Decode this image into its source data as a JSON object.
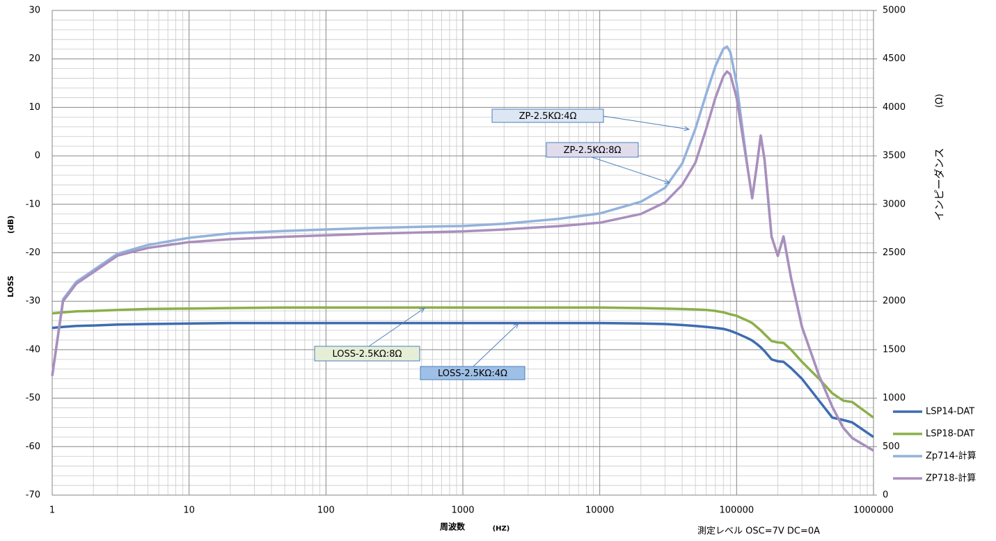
{
  "chart_data": {
    "type": "line",
    "x_label": "周波数",
    "x_unit": "(HZ)",
    "y_label": "LOSS",
    "y_unit": "(dB)",
    "y2_label": "インピーダンス",
    "y2_unit": "(Ω)",
    "footnote": "測定レベル  OSC=7V   DC=0A",
    "x_log": true,
    "grid": true,
    "legend": "right",
    "xlim": [
      1,
      1000000
    ],
    "xticks": [
      1,
      10,
      100,
      1000,
      10000,
      100000,
      1000000
    ],
    "ylim": [
      -70,
      30
    ],
    "yticks": [
      -70,
      -60,
      -50,
      -40,
      -30,
      -20,
      -10,
      0,
      10,
      20,
      30
    ],
    "y2lim": [
      0,
      5000
    ],
    "y2ticks": [
      0,
      500,
      1000,
      1500,
      2000,
      2500,
      3000,
      3500,
      4000,
      4500,
      5000
    ],
    "x": [
      1,
      1.2,
      1.5,
      2,
      3,
      5,
      10,
      20,
      50,
      100,
      200,
      500,
      1000,
      2000,
      5000,
      10000,
      20000,
      30000,
      40000,
      50000,
      60000,
      70000,
      80000,
      85000,
      90000,
      100000,
      120000,
      130000,
      140000,
      150000,
      160000,
      180000,
      200000,
      220000,
      250000,
      300000,
      400000,
      500000,
      600000,
      700000,
      1000000
    ],
    "series": [
      {
        "name": "LSP14-DAT",
        "color": "#3e6cb0",
        "values": [
          -35.5,
          -35.3,
          -35.1,
          -35,
          -34.8,
          -34.7,
          -34.6,
          -34.5,
          -34.5,
          -34.5,
          -34.5,
          -34.5,
          -34.5,
          -34.5,
          -34.5,
          -34.5,
          -34.6,
          -34.7,
          -34.9,
          -35.1,
          -35.3,
          -35.5,
          -35.7,
          -35.9,
          -36.1,
          -36.6,
          -37.6,
          -38.1,
          -38.8,
          -39.5,
          -40.3,
          -42,
          -42.4,
          -42.5,
          -43.8,
          -46,
          -50.5,
          -54,
          -54.5,
          -55,
          -58
        ]
      },
      {
        "name": "LSP18-DAT",
        "color": "#8caf4a",
        "values": [
          -32.5,
          -32.3,
          -32.1,
          -32,
          -31.8,
          -31.6,
          -31.5,
          -31.4,
          -31.3,
          -31.3,
          -31.3,
          -31.3,
          -31.3,
          -31.3,
          -31.3,
          -31.3,
          -31.4,
          -31.5,
          -31.6,
          -31.7,
          -31.8,
          -32,
          -32.3,
          -32.5,
          -32.7,
          -33,
          -34,
          -34.5,
          -35.3,
          -36,
          -36.8,
          -38.2,
          -38.5,
          -38.6,
          -40,
          -42.5,
          -46,
          -49,
          -50.5,
          -50.8,
          -54
        ]
      },
      {
        "name": "Zp714-計算",
        "color": "#93b2dc",
        "axis": "y2",
        "values": [
          1230,
          2020,
          2200,
          2320,
          2490,
          2580,
          2654,
          2700,
          2725,
          2740,
          2755,
          2768,
          2776,
          2800,
          2850,
          2905,
          3027,
          3170,
          3420,
          3780,
          4140,
          4426,
          4605,
          4627,
          4570,
          4247,
          3386,
          3063,
          3386,
          3709,
          3458,
          2668,
          2468,
          2668,
          2238,
          1736,
          1234,
          911,
          696,
          588,
          459
        ]
      },
      {
        "name": "ZP718-計算",
        "color": "#a98fbd",
        "axis": "y2",
        "values": [
          1230,
          2000,
          2180,
          2300,
          2470,
          2550,
          2610,
          2640,
          2665,
          2680,
          2695,
          2710,
          2720,
          2740,
          2775,
          2810,
          2900,
          3020,
          3200,
          3430,
          3780,
          4100,
          4320,
          4370,
          4340,
          4100,
          3386,
          3063,
          3386,
          3709,
          3458,
          2668,
          2468,
          2668,
          2238,
          1736,
          1234,
          911,
          696,
          588,
          459
        ]
      }
    ],
    "annotations": [
      "ZP-2.5KΩ:4Ω",
      "ZP-2.5KΩ:8Ω",
      "LOSS-2.5KΩ:8Ω",
      "LOSS-2.5KΩ:4Ω"
    ]
  }
}
